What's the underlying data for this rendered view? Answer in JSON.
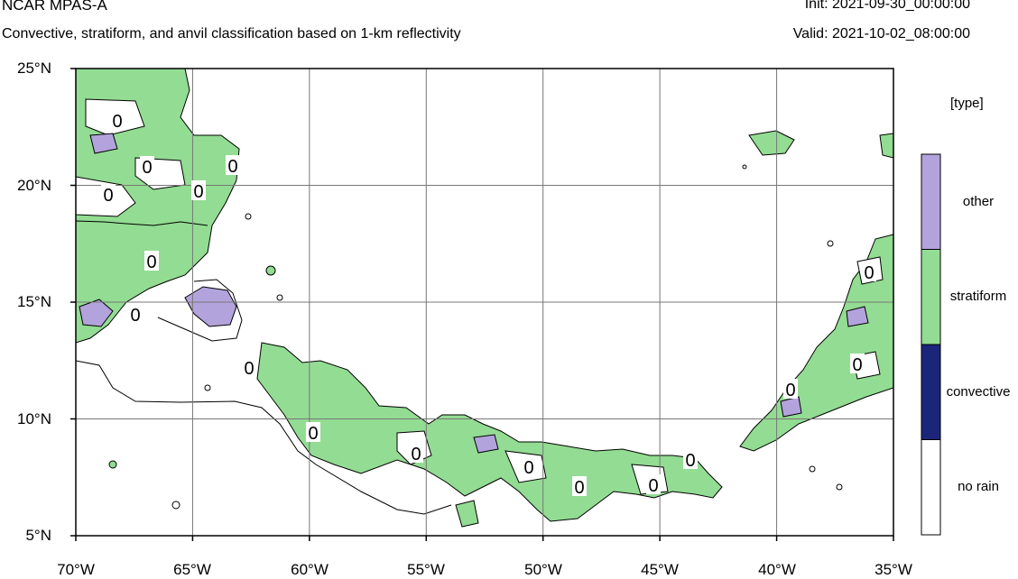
{
  "header": {
    "title": "NCAR MPAS-A",
    "subtitle": "Convective, stratiform, and anvil classification based on 1-km reflectivity",
    "init": "Init: 2021-09-30_00:00:00",
    "valid": "Valid: 2021-10-02_08:00:00"
  },
  "map": {
    "lon_range": [
      -70,
      -35
    ],
    "lat_range": [
      5,
      25
    ],
    "lon_ticks": [
      "70°W",
      "65°W",
      "60°W",
      "55°W",
      "50°W",
      "45°W",
      "40°W",
      "35°W"
    ],
    "lat_ticks": [
      "25°N",
      "20°N",
      "15°N",
      "10°N",
      "5°N"
    ],
    "contour_label": "0"
  },
  "legend": {
    "title": "[type]",
    "items": [
      {
        "label": "other",
        "color": "#b3a3dd"
      },
      {
        "label": "stratiform",
        "color": "#93dc93"
      },
      {
        "label": "convective",
        "color": "#1b267a"
      },
      {
        "label": "no rain",
        "color": "#ffffff"
      }
    ]
  }
}
